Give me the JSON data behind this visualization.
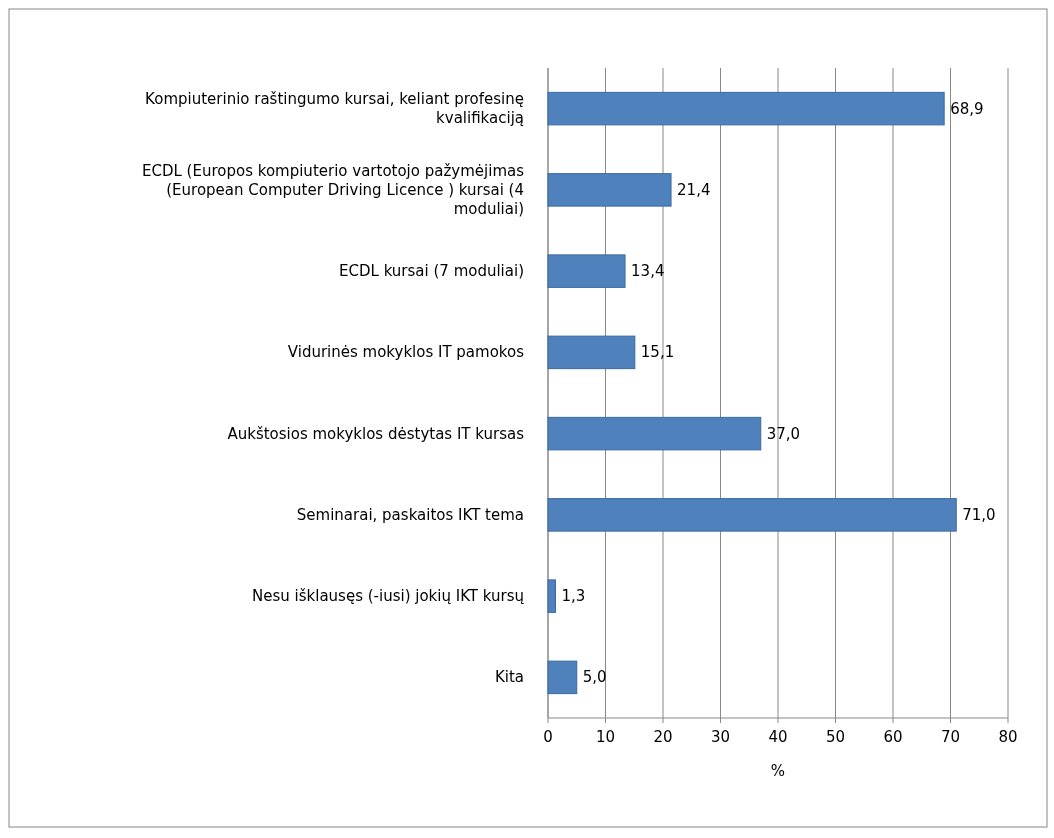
{
  "chart_data": {
    "type": "bar",
    "orientation": "horizontal",
    "categories": [
      "Kompiuterinio raštingumo kursai, keliant profesinę kvalifikaciją",
      "ECDL (Europos kompiuterio vartotojo pažymėjimas (European Computer Driving Licence ) kursai (4 moduliai)",
      "ECDL kursai (7 moduliai)",
      "Vidurinės mokyklos IT pamokos",
      "Aukštosios mokyklos dėstytas IT kursas",
      "Seminarai, paskaitos IKT tema",
      "Nesu išklausęs (-iusi) jokių IKT kursų",
      "Kita"
    ],
    "values": [
      68.9,
      21.4,
      13.4,
      15.1,
      37.0,
      71.0,
      1.3,
      5.0
    ],
    "value_labels": [
      "68,9",
      "21,4",
      "13,4",
      "15,1",
      "37,0",
      "71,0",
      "1,3",
      "5,0"
    ],
    "color": "#4f81bd",
    "xlim": [
      0,
      80
    ],
    "xticks": [
      0,
      10,
      20,
      30,
      40,
      50,
      60,
      70,
      80
    ],
    "xlabel": "%",
    "grid": "x"
  }
}
